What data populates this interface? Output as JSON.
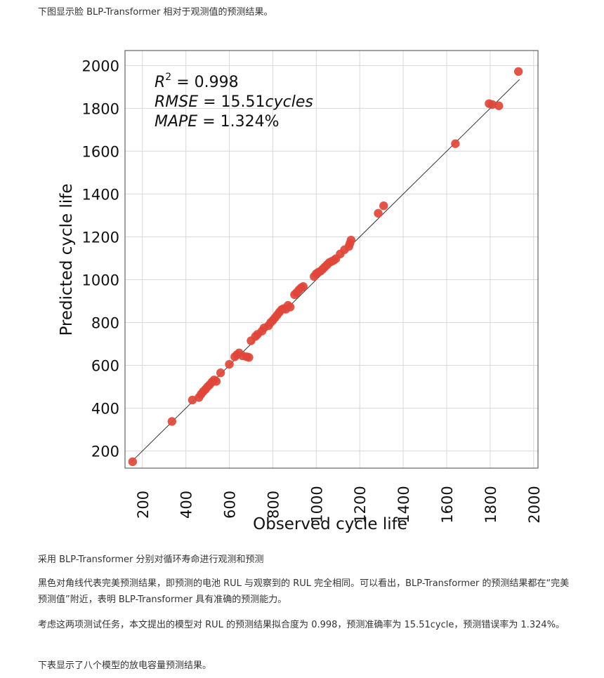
{
  "intro": "下图显示脸 BLP-Transformer 相对于观测值的预测结果。",
  "caption": "采用 BLP-Transformer 分别对循环寿命进行观测和预测",
  "para1": "黑色对角线代表完美预测结果，即预测的电池 RUL 与观察到的 RUL 完全相同。可以看出，BLP-Transformer 的预测结果都在“完美预测值”附近，表明 BLP-Transformer 具有准确的预测能力。",
  "para2": "考虑这两项测试任务，本文提出的模型对 RUL 的预测结果拟合度为 0.998，预测准确率为 15.51cycle，预测错误率为 1.324%。",
  "para3": "下表显示了八个模型的放电容量预测结果。",
  "chart_data": {
    "type": "scatter",
    "xlabel": "Observed cycle life",
    "ylabel": "Predicted cycle life",
    "xlim": [
      120,
      2020
    ],
    "ylim": [
      120,
      2070
    ],
    "xticks": [
      200,
      400,
      600,
      800,
      1000,
      1200,
      1400,
      1600,
      1800,
      2000
    ],
    "yticks": [
      200,
      400,
      600,
      800,
      1000,
      1200,
      1400,
      1600,
      1800,
      2000
    ],
    "grid": true,
    "point_color": "#e0463a",
    "line_color": "#333333",
    "reference_line": {
      "from": [
        148,
        148
      ],
      "to": [
        1935,
        1935
      ]
    },
    "annotations": {
      "r2_label": "R",
      "r2_sup": "2",
      "r2_value": " = 0.998",
      "rmse_label": "RMSE",
      "rmse_value": " = 15.51",
      "rmse_unit": "cycles",
      "mape_label": "MAPE",
      "mape_value": " = 1.324%"
    },
    "points": [
      [
        155,
        150
      ],
      [
        336,
        338
      ],
      [
        430,
        438
      ],
      [
        460,
        450
      ],
      [
        470,
        465
      ],
      [
        480,
        478
      ],
      [
        490,
        488
      ],
      [
        500,
        500
      ],
      [
        510,
        510
      ],
      [
        520,
        522
      ],
      [
        530,
        532
      ],
      [
        540,
        525
      ],
      [
        560,
        565
      ],
      [
        600,
        605
      ],
      [
        625,
        640
      ],
      [
        635,
        650
      ],
      [
        645,
        658
      ],
      [
        660,
        645
      ],
      [
        680,
        640
      ],
      [
        690,
        637
      ],
      [
        700,
        715
      ],
      [
        720,
        735
      ],
      [
        730,
        745
      ],
      [
        750,
        760
      ],
      [
        760,
        775
      ],
      [
        780,
        785
      ],
      [
        790,
        800
      ],
      [
        800,
        810
      ],
      [
        810,
        822
      ],
      [
        820,
        835
      ],
      [
        830,
        848
      ],
      [
        840,
        860
      ],
      [
        850,
        865
      ],
      [
        860,
        862
      ],
      [
        870,
        880
      ],
      [
        880,
        872
      ],
      [
        900,
        930
      ],
      [
        910,
        940
      ],
      [
        920,
        952
      ],
      [
        930,
        962
      ],
      [
        940,
        968
      ],
      [
        990,
        1015
      ],
      [
        1000,
        1028
      ],
      [
        1010,
        1035
      ],
      [
        1020,
        1040
      ],
      [
        1030,
        1050
      ],
      [
        1040,
        1060
      ],
      [
        1050,
        1070
      ],
      [
        1060,
        1080
      ],
      [
        1070,
        1085
      ],
      [
        1080,
        1090
      ],
      [
        1090,
        1098
      ],
      [
        1110,
        1120
      ],
      [
        1130,
        1140
      ],
      [
        1150,
        1155
      ],
      [
        1155,
        1170
      ],
      [
        1160,
        1185
      ],
      [
        1285,
        1310
      ],
      [
        1310,
        1345
      ],
      [
        1640,
        1635
      ],
      [
        1795,
        1822
      ],
      [
        1810,
        1818
      ],
      [
        1840,
        1812
      ],
      [
        1930,
        1972
      ]
    ]
  }
}
